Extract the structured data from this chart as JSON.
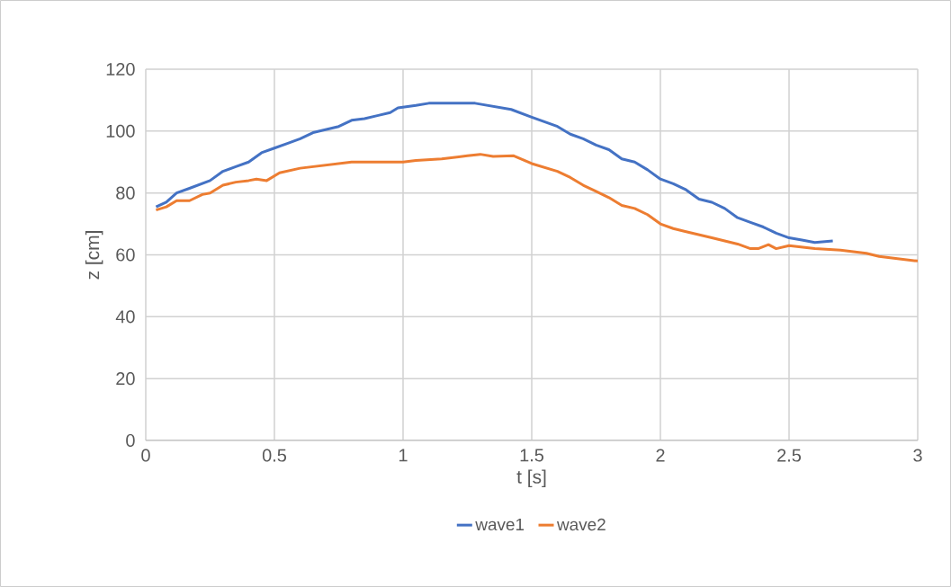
{
  "chart_data": {
    "type": "line",
    "xlabel": "t [s]",
    "ylabel": "z [cm]",
    "xlim": [
      0,
      3
    ],
    "xticks": [
      0,
      0.5,
      1,
      1.5,
      2,
      2.5,
      3
    ],
    "ylim": [
      0,
      120
    ],
    "yticks": [
      0,
      20,
      40,
      60,
      80,
      100,
      120
    ],
    "grid": true,
    "legend": "bottom",
    "marker": "none",
    "line_style": "solid",
    "series": [
      {
        "name": "wave1",
        "color": "#4472c4",
        "x": [
          0.04,
          0.08,
          0.12,
          0.17,
          0.25,
          0.3,
          0.35,
          0.4,
          0.45,
          0.5,
          0.55,
          0.6,
          0.65,
          0.7,
          0.75,
          0.8,
          0.85,
          0.9,
          0.95,
          0.98,
          1.05,
          1.1,
          1.2,
          1.28,
          1.35,
          1.42,
          1.5,
          1.55,
          1.6,
          1.65,
          1.7,
          1.75,
          1.8,
          1.85,
          1.9,
          1.95,
          2.0,
          2.05,
          2.1,
          2.15,
          2.2,
          2.25,
          2.3,
          2.35,
          2.4,
          2.45,
          2.5,
          2.55,
          2.6,
          2.67
        ],
        "values": [
          75.5,
          77,
          80,
          81.5,
          84,
          87,
          88.5,
          90,
          93,
          94.5,
          96,
          97.5,
          99.5,
          100.5,
          101.5,
          103.5,
          104,
          105,
          106,
          107.5,
          108.3,
          109,
          109,
          109,
          108,
          107,
          104.5,
          103,
          101.5,
          99,
          97.5,
          95.5,
          94,
          91,
          90,
          87.5,
          84.5,
          83,
          81,
          78,
          77,
          75,
          72,
          70.5,
          69,
          67,
          65.5,
          64.8,
          64,
          64.5
        ]
      },
      {
        "name": "wave2",
        "color": "#ed7d31",
        "x": [
          0.04,
          0.08,
          0.12,
          0.17,
          0.22,
          0.25,
          0.3,
          0.35,
          0.4,
          0.43,
          0.47,
          0.52,
          0.6,
          0.7,
          0.8,
          0.9,
          1.0,
          1.05,
          1.15,
          1.25,
          1.3,
          1.35,
          1.43,
          1.5,
          1.6,
          1.65,
          1.7,
          1.75,
          1.8,
          1.85,
          1.9,
          1.95,
          2.0,
          2.05,
          2.1,
          2.2,
          2.3,
          2.35,
          2.38,
          2.42,
          2.45,
          2.5,
          2.6,
          2.7,
          2.8,
          2.85,
          2.9,
          3.0
        ],
        "values": [
          74.5,
          75.5,
          77.5,
          77.5,
          79.5,
          80,
          82.5,
          83.5,
          84,
          84.5,
          84,
          86.5,
          88,
          89,
          90,
          90,
          90,
          90.5,
          91,
          92,
          92.5,
          91.8,
          92,
          89.5,
          87,
          85,
          82.5,
          80.5,
          78.5,
          76,
          75,
          73,
          70,
          68.5,
          67.5,
          65.5,
          63.5,
          62,
          62,
          63.3,
          62,
          63,
          62,
          61.5,
          60.5,
          59.5,
          59,
          58
        ]
      }
    ]
  }
}
